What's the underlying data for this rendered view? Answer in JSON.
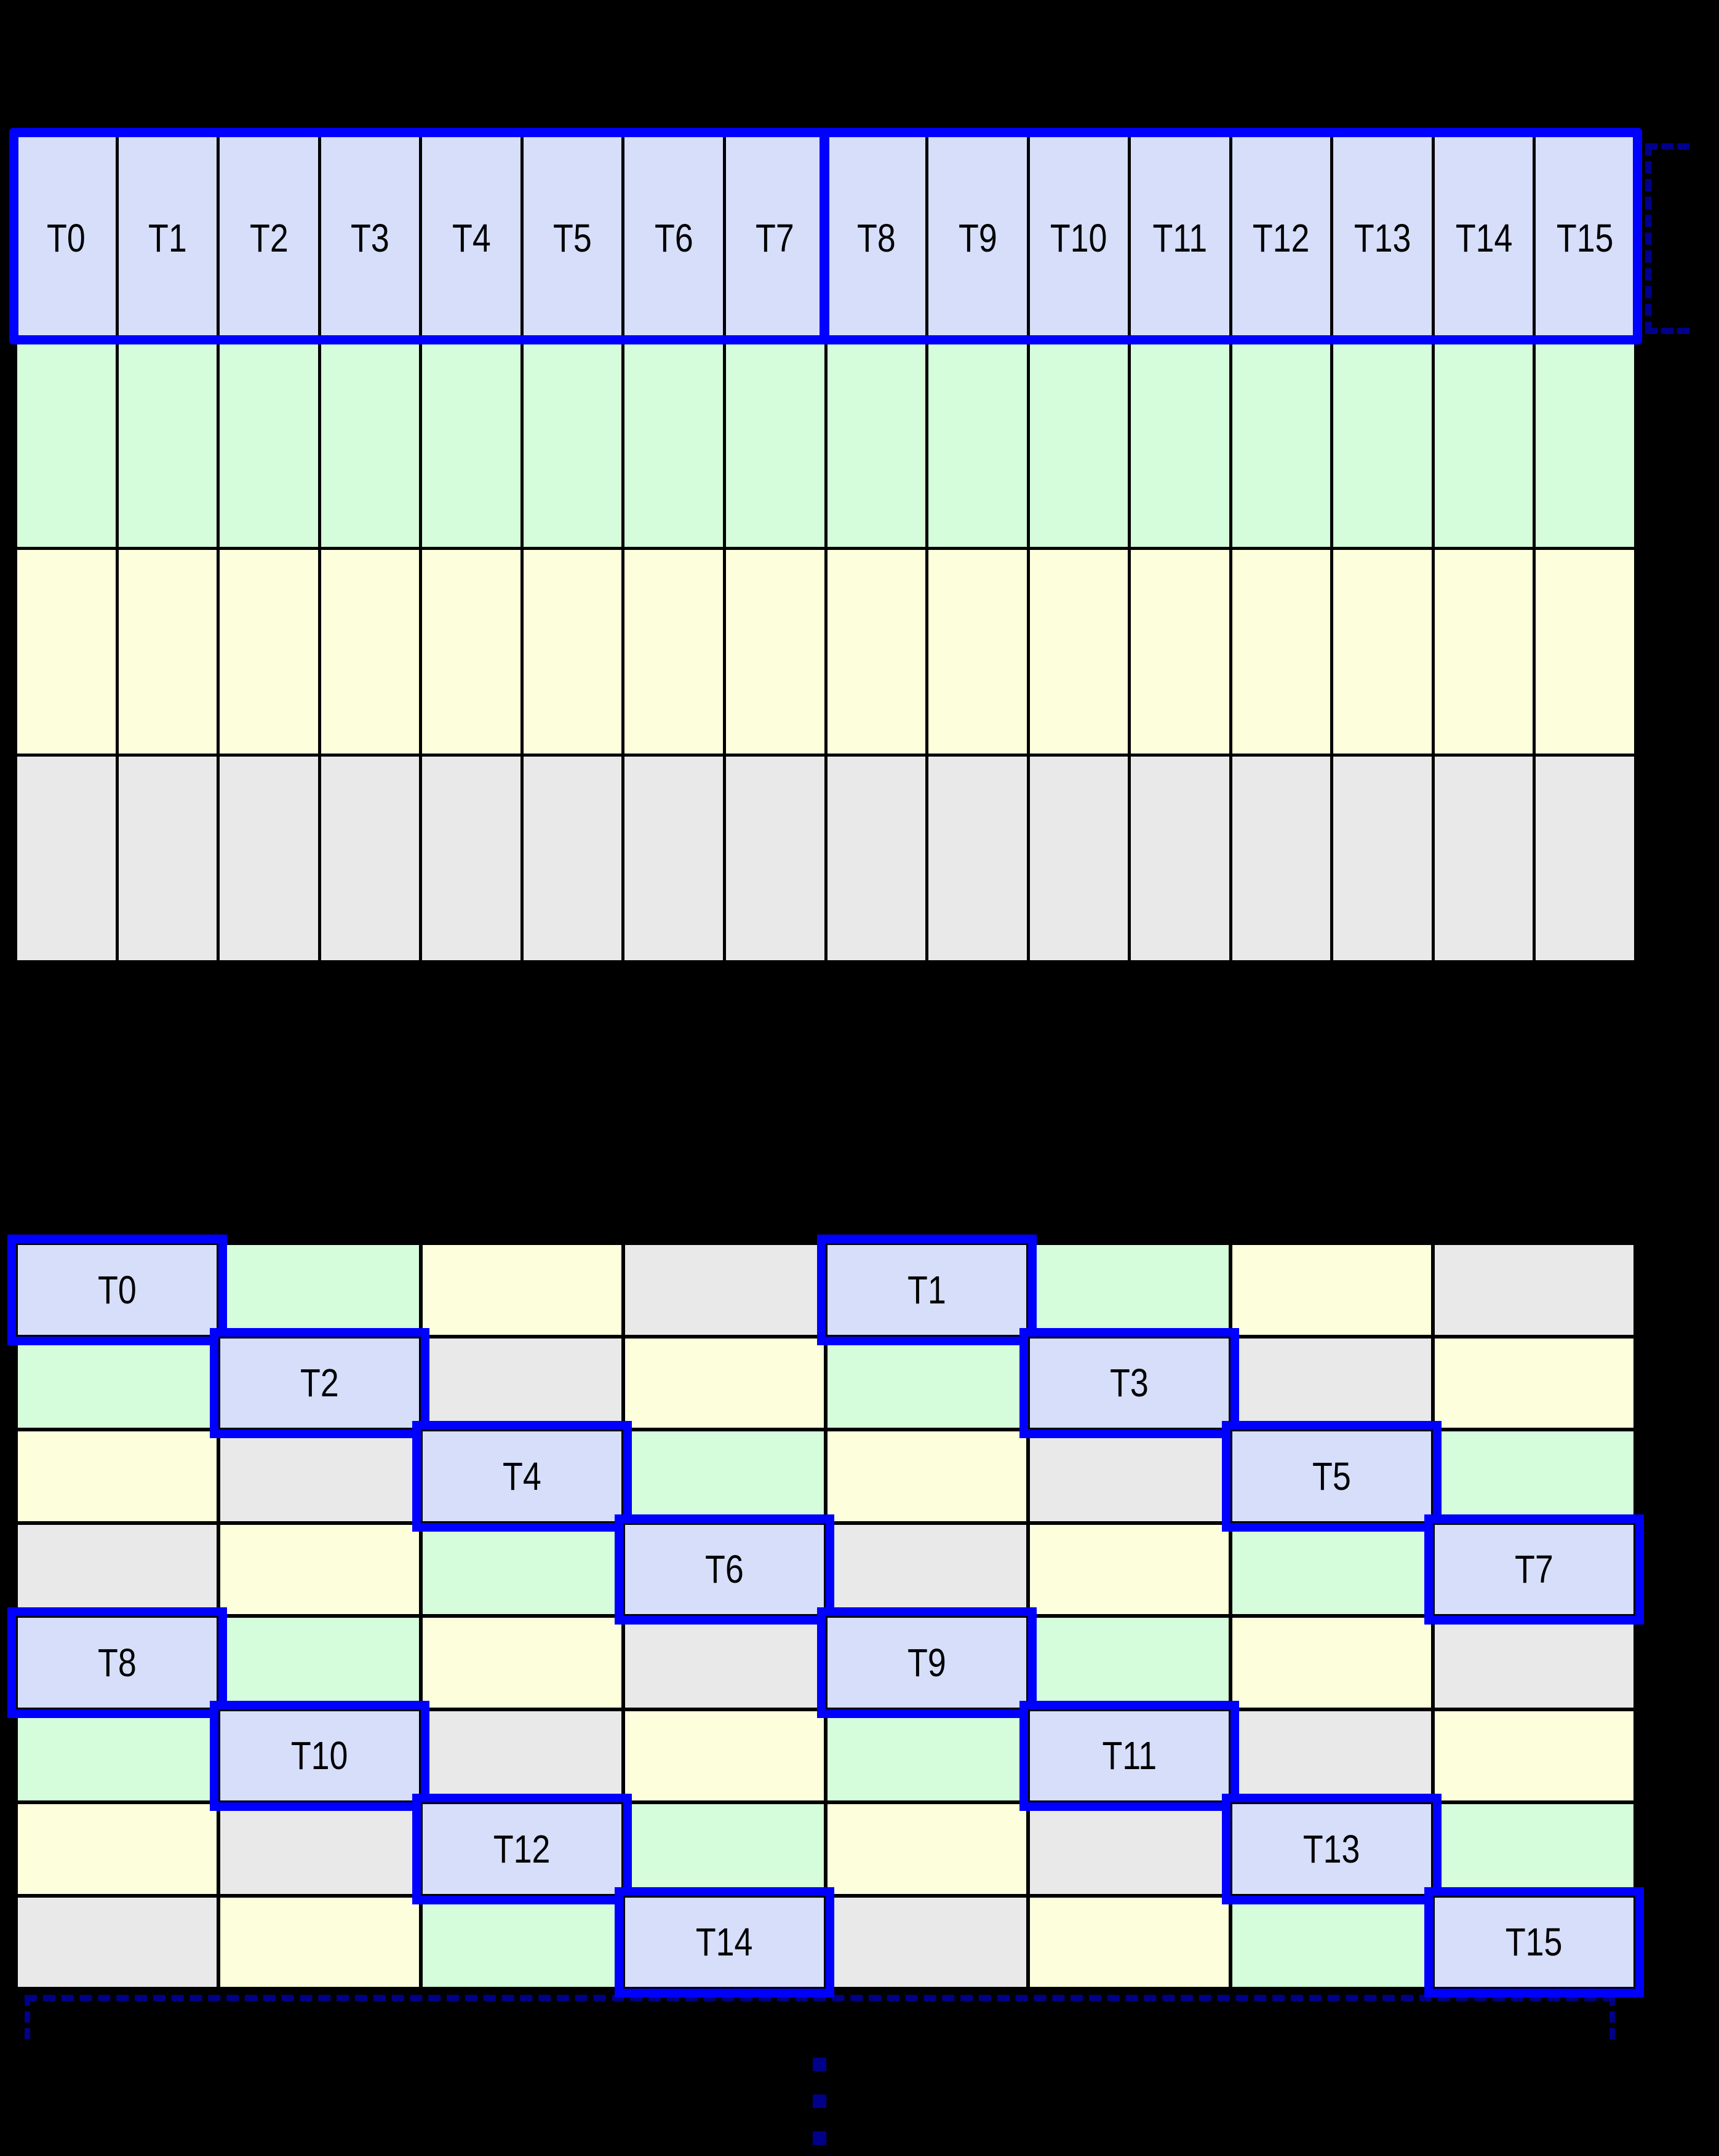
{
  "diagram": {
    "colors": {
      "background": "#000000",
      "grid_line": "#000000",
      "thread_outline": "#0000FF",
      "bracket_navy": "#00008B",
      "label_text": "#000000",
      "cell_fill": {
        "b": "#D6DEFA",
        "g": "#D5FCDB",
        "y": "#FDFFDC",
        "x": "#E9E9E9"
      }
    },
    "top_grid": {
      "columns": 16,
      "row_types": [
        "b",
        "g",
        "y",
        "x"
      ],
      "thread_labels": [
        "T0",
        "T1",
        "T2",
        "T3",
        "T4",
        "T5",
        "T6",
        "T7",
        "T8",
        "T9",
        "T10",
        "T11",
        "T12",
        "T13",
        "T14",
        "T15"
      ]
    },
    "bottom_grid": {
      "columns": 8,
      "rows": [
        [
          "b:T0",
          "g",
          "y",
          "x",
          "b:T1",
          "g",
          "y",
          "x"
        ],
        [
          "g",
          "b:T2",
          "x",
          "y",
          "g",
          "b:T3",
          "x",
          "y"
        ],
        [
          "y",
          "x",
          "b:T4",
          "g",
          "y",
          "x",
          "b:T5",
          "g"
        ],
        [
          "x",
          "y",
          "g",
          "b:T6",
          "x",
          "y",
          "g",
          "b:T7"
        ],
        [
          "b:T8",
          "g",
          "y",
          "x",
          "b:T9",
          "g",
          "y",
          "x"
        ],
        [
          "g",
          "b:T10",
          "x",
          "y",
          "g",
          "b:T11",
          "x",
          "y"
        ],
        [
          "y",
          "x",
          "b:T12",
          "g",
          "y",
          "x",
          "b:T13",
          "g"
        ],
        [
          "x",
          "y",
          "g",
          "b:T14",
          "x",
          "y",
          "g",
          "b:T15"
        ]
      ]
    }
  }
}
